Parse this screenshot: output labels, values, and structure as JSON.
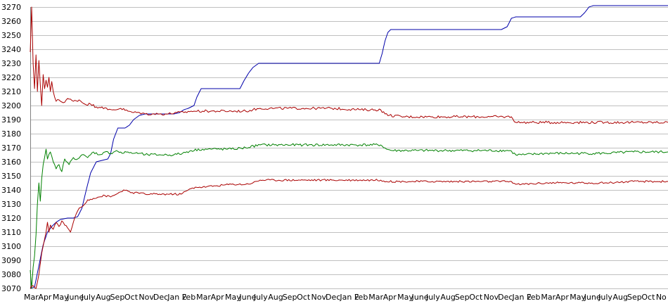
{
  "chart_data": {
    "type": "line",
    "title": "",
    "xlabel": "",
    "ylabel": "",
    "ylim": [
      3070,
      3270
    ],
    "y_ticks": [
      3070,
      3080,
      3090,
      3100,
      3110,
      3120,
      3130,
      3140,
      3150,
      3160,
      3170,
      3180,
      3190,
      3200,
      3210,
      3220,
      3230,
      3240,
      3250,
      3260,
      3270
    ],
    "grid": true,
    "legend": "none",
    "x_tick_labels": [
      "Mar",
      "Apr",
      "May",
      "June",
      "July",
      "Aug",
      "Sep",
      "Oct",
      "Nov",
      "Dec",
      "Jan 2",
      "Feb",
      "Mar",
      "Apr",
      "May",
      "June",
      "July",
      "Aug",
      "Sep",
      "Oct",
      "Nov",
      "Dec",
      "Jan 2",
      "Feb",
      "Mar",
      "Apr",
      "May",
      "June",
      "July",
      "Aug",
      "Sep",
      "Oct",
      "Nov",
      "Dec",
      "Jan 2",
      "Feb",
      "Mar",
      "Apr",
      "May",
      "June",
      "July",
      "Aug",
      "Sep",
      "Oct",
      "No"
    ],
    "x_month_range": [
      0,
      44.4
    ],
    "series": [
      {
        "color": "#0000aa",
        "points": [
          [
            0,
            3070
          ],
          [
            0.3,
            3071
          ],
          [
            0.6,
            3086
          ],
          [
            0.9,
            3101
          ],
          [
            1.2,
            3110
          ],
          [
            1.5,
            3114
          ],
          [
            1.8,
            3117
          ],
          [
            2.1,
            3119
          ],
          [
            2.6,
            3120
          ],
          [
            3.0,
            3120
          ],
          [
            3.3,
            3121
          ],
          [
            3.6,
            3127
          ],
          [
            3.9,
            3140
          ],
          [
            4.2,
            3152
          ],
          [
            4.6,
            3160
          ],
          [
            5.0,
            3161
          ],
          [
            5.4,
            3162
          ],
          [
            5.6,
            3166
          ],
          [
            5.8,
            3176
          ],
          [
            6.1,
            3184
          ],
          [
            6.6,
            3184
          ],
          [
            6.9,
            3186
          ],
          [
            7.2,
            3190
          ],
          [
            7.6,
            3193
          ],
          [
            8.0,
            3194
          ],
          [
            9.0,
            3194
          ],
          [
            10.0,
            3194
          ],
          [
            10.4,
            3195
          ],
          [
            10.7,
            3197
          ],
          [
            11.0,
            3198
          ],
          [
            11.4,
            3200
          ],
          [
            11.6,
            3206
          ],
          [
            11.9,
            3212
          ],
          [
            13.0,
            3212
          ],
          [
            14.0,
            3212
          ],
          [
            14.6,
            3212
          ],
          [
            14.9,
            3218
          ],
          [
            15.2,
            3223
          ],
          [
            15.5,
            3227
          ],
          [
            15.9,
            3230
          ],
          [
            17.0,
            3230
          ],
          [
            19.0,
            3230
          ],
          [
            21.0,
            3230
          ],
          [
            22.0,
            3230
          ],
          [
            24.3,
            3230
          ],
          [
            24.5,
            3237
          ],
          [
            24.7,
            3246
          ],
          [
            24.9,
            3252
          ],
          [
            25.1,
            3254
          ],
          [
            27.0,
            3254
          ],
          [
            29.0,
            3254
          ],
          [
            31.0,
            3254
          ],
          [
            32.8,
            3254
          ],
          [
            33.2,
            3256
          ],
          [
            33.5,
            3262
          ],
          [
            33.8,
            3263
          ],
          [
            36.0,
            3263
          ],
          [
            38.3,
            3263
          ],
          [
            38.6,
            3266
          ],
          [
            38.9,
            3270
          ],
          [
            39.2,
            3271
          ],
          [
            44.4,
            3271
          ]
        ]
      },
      {
        "color": "#aa0000",
        "noise": 0.9,
        "points": [
          [
            0,
            3238
          ],
          [
            0.1,
            3270
          ],
          [
            0.2,
            3230
          ],
          [
            0.3,
            3212
          ],
          [
            0.4,
            3236
          ],
          [
            0.5,
            3210
          ],
          [
            0.6,
            3232
          ],
          [
            0.7,
            3215
          ],
          [
            0.8,
            3200
          ],
          [
            0.9,
            3222
          ],
          [
            1.0,
            3212
          ],
          [
            1.1,
            3218
          ],
          [
            1.2,
            3213
          ],
          [
            1.3,
            3220
          ],
          [
            1.4,
            3210
          ],
          [
            1.5,
            3217
          ],
          [
            1.6,
            3210
          ],
          [
            1.7,
            3206
          ],
          [
            1.8,
            3203
          ],
          [
            2.0,
            3204
          ],
          [
            2.3,
            3202
          ],
          [
            2.6,
            3205
          ],
          [
            3.0,
            3203
          ],
          [
            3.4,
            3204
          ],
          [
            3.8,
            3201
          ],
          [
            4.2,
            3201
          ],
          [
            4.6,
            3199
          ],
          [
            5.0,
            3199
          ],
          [
            5.4,
            3197
          ],
          [
            5.8,
            3197
          ],
          [
            6.3,
            3198
          ],
          [
            6.8,
            3196
          ],
          [
            7.2,
            3195
          ],
          [
            7.6,
            3195
          ],
          [
            8.0,
            3194
          ],
          [
            8.5,
            3194
          ],
          [
            9.0,
            3194
          ],
          [
            9.6,
            3194
          ],
          [
            10.2,
            3195
          ],
          [
            10.7,
            3195
          ],
          [
            11.2,
            3196
          ],
          [
            12.0,
            3196
          ],
          [
            13.0,
            3196
          ],
          [
            14.0,
            3196
          ],
          [
            15.0,
            3196
          ],
          [
            15.5,
            3197
          ],
          [
            16.0,
            3198
          ],
          [
            17.0,
            3198
          ],
          [
            19.0,
            3198
          ],
          [
            21.0,
            3198
          ],
          [
            23.0,
            3197
          ],
          [
            24.4,
            3197
          ],
          [
            24.7,
            3194
          ],
          [
            25.0,
            3193
          ],
          [
            26.0,
            3192
          ],
          [
            28.0,
            3192
          ],
          [
            30.0,
            3192
          ],
          [
            32.0,
            3192
          ],
          [
            33.5,
            3192
          ],
          [
            33.8,
            3188
          ],
          [
            34.2,
            3188
          ],
          [
            36.0,
            3188
          ],
          [
            38.0,
            3188
          ],
          [
            40.0,
            3188
          ],
          [
            42.0,
            3188
          ],
          [
            44.4,
            3188
          ]
        ]
      },
      {
        "color": "#008000",
        "noise": 0.9,
        "points": [
          [
            0,
            3083
          ],
          [
            0.1,
            3070
          ],
          [
            0.2,
            3085
          ],
          [
            0.3,
            3093
          ],
          [
            0.4,
            3108
          ],
          [
            0.5,
            3130
          ],
          [
            0.6,
            3145
          ],
          [
            0.7,
            3132
          ],
          [
            0.8,
            3148
          ],
          [
            0.9,
            3158
          ],
          [
            1.0,
            3163
          ],
          [
            1.1,
            3169
          ],
          [
            1.2,
            3162
          ],
          [
            1.4,
            3167
          ],
          [
            1.6,
            3160
          ],
          [
            1.8,
            3155
          ],
          [
            2.0,
            3158
          ],
          [
            2.2,
            3153
          ],
          [
            2.4,
            3162
          ],
          [
            2.7,
            3158
          ],
          [
            3.0,
            3163
          ],
          [
            3.3,
            3162
          ],
          [
            3.6,
            3165
          ],
          [
            4.0,
            3163
          ],
          [
            4.4,
            3167
          ],
          [
            4.8,
            3165
          ],
          [
            5.2,
            3167
          ],
          [
            5.6,
            3166
          ],
          [
            6.0,
            3168
          ],
          [
            6.4,
            3166
          ],
          [
            6.8,
            3167
          ],
          [
            7.2,
            3166
          ],
          [
            7.6,
            3166
          ],
          [
            8.0,
            3165
          ],
          [
            9.0,
            3165
          ],
          [
            10.0,
            3165
          ],
          [
            10.6,
            3166
          ],
          [
            11.2,
            3168
          ],
          [
            12.0,
            3169
          ],
          [
            13.0,
            3169
          ],
          [
            14.0,
            3169
          ],
          [
            15.0,
            3170
          ],
          [
            16.0,
            3172
          ],
          [
            17.0,
            3172
          ],
          [
            19.0,
            3172
          ],
          [
            21.0,
            3172
          ],
          [
            23.0,
            3172
          ],
          [
            24.4,
            3172
          ],
          [
            24.8,
            3169
          ],
          [
            25.2,
            3168
          ],
          [
            27.0,
            3168
          ],
          [
            29.0,
            3168
          ],
          [
            31.0,
            3168
          ],
          [
            33.4,
            3168
          ],
          [
            33.8,
            3165
          ],
          [
            34.4,
            3165
          ],
          [
            36.0,
            3166
          ],
          [
            38.0,
            3166
          ],
          [
            40.0,
            3166
          ],
          [
            42.0,
            3167
          ],
          [
            44.4,
            3167
          ]
        ]
      },
      {
        "color": "#aa0000",
        "noise": 0.7,
        "points": [
          [
            0,
            3070
          ],
          [
            0.2,
            3072
          ],
          [
            0.4,
            3070
          ],
          [
            0.6,
            3080
          ],
          [
            0.8,
            3095
          ],
          [
            1.0,
            3105
          ],
          [
            1.1,
            3110
          ],
          [
            1.2,
            3117
          ],
          [
            1.3,
            3110
          ],
          [
            1.4,
            3115
          ],
          [
            1.6,
            3112
          ],
          [
            1.8,
            3117
          ],
          [
            2.0,
            3114
          ],
          [
            2.2,
            3118
          ],
          [
            2.4,
            3115
          ],
          [
            2.6,
            3113
          ],
          [
            2.8,
            3110
          ],
          [
            3.0,
            3117
          ],
          [
            3.2,
            3123
          ],
          [
            3.4,
            3127
          ],
          [
            3.6,
            3128
          ],
          [
            3.8,
            3130
          ],
          [
            4.0,
            3133
          ],
          [
            4.4,
            3134
          ],
          [
            4.8,
            3135
          ],
          [
            5.2,
            3136
          ],
          [
            5.6,
            3135
          ],
          [
            6.0,
            3137
          ],
          [
            6.5,
            3140
          ],
          [
            7.0,
            3138
          ],
          [
            7.5,
            3138
          ],
          [
            8.0,
            3137
          ],
          [
            9.0,
            3137
          ],
          [
            10.0,
            3137
          ],
          [
            10.5,
            3137
          ],
          [
            11.0,
            3140
          ],
          [
            11.5,
            3142
          ],
          [
            12.0,
            3142
          ],
          [
            13.0,
            3143
          ],
          [
            14.0,
            3144
          ],
          [
            15.0,
            3144
          ],
          [
            15.5,
            3145
          ],
          [
            16.0,
            3147
          ],
          [
            17.0,
            3147
          ],
          [
            19.0,
            3147
          ],
          [
            21.0,
            3147
          ],
          [
            23.0,
            3147
          ],
          [
            24.4,
            3147
          ],
          [
            24.8,
            3146
          ],
          [
            26.0,
            3146
          ],
          [
            28.0,
            3146
          ],
          [
            30.0,
            3146
          ],
          [
            32.0,
            3146
          ],
          [
            33.5,
            3146
          ],
          [
            33.8,
            3144
          ],
          [
            34.2,
            3144
          ],
          [
            36.0,
            3145
          ],
          [
            38.0,
            3145
          ],
          [
            40.0,
            3145
          ],
          [
            42.0,
            3146
          ],
          [
            44.4,
            3146
          ]
        ]
      }
    ]
  }
}
